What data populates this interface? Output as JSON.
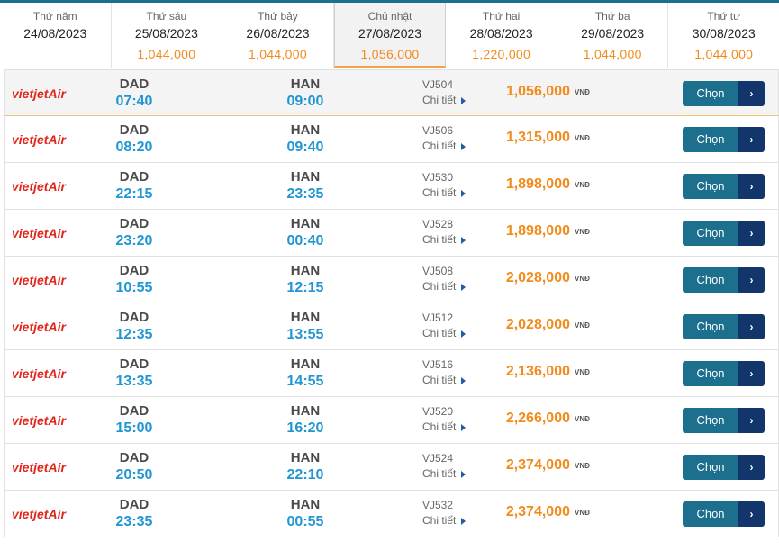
{
  "dates": [
    {
      "weekday": "Thứ năm",
      "date": "24/08/2023",
      "price": ""
    },
    {
      "weekday": "Thứ sáu",
      "date": "25/08/2023",
      "price": "1,044,000"
    },
    {
      "weekday": "Thứ bảy",
      "date": "26/08/2023",
      "price": "1,044,000"
    },
    {
      "weekday": "Chủ nhật",
      "date": "27/08/2023",
      "price": "1,056,000",
      "selected": true
    },
    {
      "weekday": "Thứ hai",
      "date": "28/08/2023",
      "price": "1,220,000"
    },
    {
      "weekday": "Thứ ba",
      "date": "29/08/2023",
      "price": "1,044,000"
    },
    {
      "weekday": "Thứ tư",
      "date": "30/08/2023",
      "price": "1,044,000"
    }
  ],
  "labels": {
    "detail": "Chi tiết",
    "currency": "VNĐ",
    "select": "Chọn",
    "airline_logo": "vietjetAir"
  },
  "colors": {
    "accent_orange": "#f28b1c",
    "time_blue": "#2196d3",
    "button_teal": "#1d6f8e",
    "button_navy": "#12356b",
    "logo_red": "#e1261c"
  },
  "flights": [
    {
      "from": "DAD",
      "dep": "07:40",
      "to": "HAN",
      "arr": "09:00",
      "flight": "VJ504",
      "price": "1,056,000",
      "highlighted": true
    },
    {
      "from": "DAD",
      "dep": "08:20",
      "to": "HAN",
      "arr": "09:40",
      "flight": "VJ506",
      "price": "1,315,000"
    },
    {
      "from": "DAD",
      "dep": "22:15",
      "to": "HAN",
      "arr": "23:35",
      "flight": "VJ530",
      "price": "1,898,000"
    },
    {
      "from": "DAD",
      "dep": "23:20",
      "to": "HAN",
      "arr": "00:40",
      "flight": "VJ528",
      "price": "1,898,000"
    },
    {
      "from": "DAD",
      "dep": "10:55",
      "to": "HAN",
      "arr": "12:15",
      "flight": "VJ508",
      "price": "2,028,000"
    },
    {
      "from": "DAD",
      "dep": "12:35",
      "to": "HAN",
      "arr": "13:55",
      "flight": "VJ512",
      "price": "2,028,000"
    },
    {
      "from": "DAD",
      "dep": "13:35",
      "to": "HAN",
      "arr": "14:55",
      "flight": "VJ516",
      "price": "2,136,000"
    },
    {
      "from": "DAD",
      "dep": "15:00",
      "to": "HAN",
      "arr": "16:20",
      "flight": "VJ520",
      "price": "2,266,000"
    },
    {
      "from": "DAD",
      "dep": "20:50",
      "to": "HAN",
      "arr": "22:10",
      "flight": "VJ524",
      "price": "2,374,000"
    },
    {
      "from": "DAD",
      "dep": "23:35",
      "to": "HAN",
      "arr": "00:55",
      "flight": "VJ532",
      "price": "2,374,000"
    }
  ]
}
